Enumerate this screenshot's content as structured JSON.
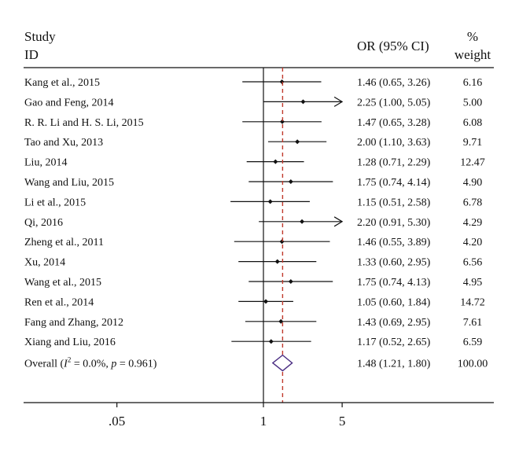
{
  "chart_data": {
    "type": "forest",
    "header": {
      "study_label_line1": "Study",
      "study_label_line2": "ID",
      "or_label": "OR (95% CI)",
      "weight_label_line1": "%",
      "weight_label_line2": "weight"
    },
    "x_scale": "log",
    "x_ticks": [
      {
        "value": 0.05,
        "label": ".05"
      },
      {
        "value": 1,
        "label": "1"
      },
      {
        "value": 5,
        "label": "5"
      }
    ],
    "null_line": 1,
    "arrow_cutoff": 5,
    "studies": [
      {
        "id": "Kang et al., 2015",
        "or": 1.46,
        "lower": 0.65,
        "upper": 3.26,
        "ci_text": "1.46 (0.65, 3.26)",
        "weight": "6.16"
      },
      {
        "id": "Gao and Feng, 2014",
        "or": 2.25,
        "lower": 1.0,
        "upper": 5.05,
        "ci_text": "2.25 (1.00, 5.05)",
        "weight": "5.00"
      },
      {
        "id": "R. R. Li and H. S. Li, 2015",
        "or": 1.47,
        "lower": 0.65,
        "upper": 3.28,
        "ci_text": "1.47 (0.65, 3.28)",
        "weight": "6.08"
      },
      {
        "id": "Tao and Xu, 2013",
        "or": 2.0,
        "lower": 1.1,
        "upper": 3.63,
        "ci_text": "2.00 (1.10, 3.63)",
        "weight": "9.71"
      },
      {
        "id": "Liu, 2014",
        "or": 1.28,
        "lower": 0.71,
        "upper": 2.29,
        "ci_text": "1.28 (0.71, 2.29)",
        "weight": "12.47"
      },
      {
        "id": "Wang and Liu, 2015",
        "or": 1.75,
        "lower": 0.74,
        "upper": 4.14,
        "ci_text": "1.75 (0.74, 4.14)",
        "weight": "4.90"
      },
      {
        "id": "Li et al., 2015",
        "or": 1.15,
        "lower": 0.51,
        "upper": 2.58,
        "ci_text": "1.15 (0.51, 2.58)",
        "weight": "6.78"
      },
      {
        "id": "Qi, 2016",
        "or": 2.2,
        "lower": 0.91,
        "upper": 5.3,
        "ci_text": "2.20 (0.91, 5.30)",
        "weight": "4.29"
      },
      {
        "id": "Zheng et al., 2011",
        "or": 1.46,
        "lower": 0.55,
        "upper": 3.89,
        "ci_text": "1.46 (0.55, 3.89)",
        "weight": "4.20"
      },
      {
        "id": "Xu, 2014",
        "or": 1.33,
        "lower": 0.6,
        "upper": 2.95,
        "ci_text": "1.33 (0.60, 2.95)",
        "weight": "6.56"
      },
      {
        "id": "Wang et al., 2015",
        "or": 1.75,
        "lower": 0.74,
        "upper": 4.13,
        "ci_text": "1.75 (0.74, 4.13)",
        "weight": "4.95"
      },
      {
        "id": "Ren et al., 2014",
        "or": 1.05,
        "lower": 0.6,
        "upper": 1.84,
        "ci_text": "1.05 (0.60, 1.84)",
        "weight": "14.72"
      },
      {
        "id": "Fang and Zhang, 2012",
        "or": 1.43,
        "lower": 0.69,
        "upper": 2.95,
        "ci_text": "1.43 (0.69, 2.95)",
        "weight": "7.61"
      },
      {
        "id": "Xiang and Liu, 2016",
        "or": 1.17,
        "lower": 0.52,
        "upper": 2.65,
        "ci_text": "1.17 (0.52, 2.65)",
        "weight": "6.59"
      }
    ],
    "overall": {
      "label_prefix": "Overall (",
      "label_i": "I",
      "label_sup": "2",
      "label_mid": " = 0.0%, ",
      "label_p": "p",
      "label_end": " = 0.961)",
      "or": 1.48,
      "lower": 1.21,
      "upper": 1.8,
      "ci_text": "1.48 (1.21, 1.80)",
      "weight": "100.00"
    },
    "colors": {
      "pooled_line": "#c0392b",
      "diamond": "#4b2e83",
      "ink": "#111111"
    }
  }
}
